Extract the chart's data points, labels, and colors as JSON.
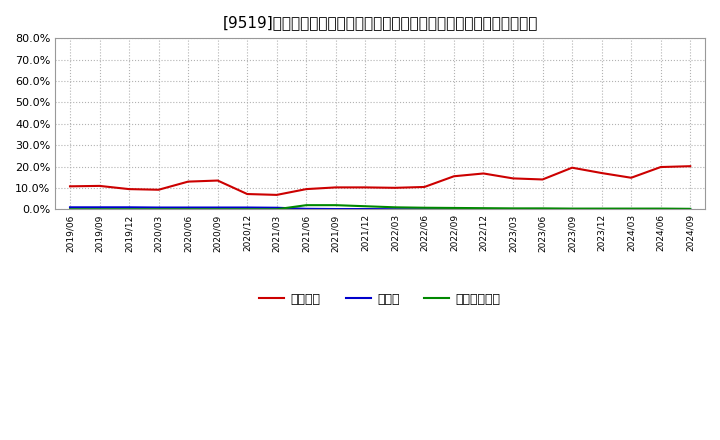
{
  "title": "[9519]　自己資本、のれん、繰延税金資産の総資産に対する比率の推移",
  "x_labels": [
    "2019/06",
    "2019/09",
    "2019/12",
    "2020/03",
    "2020/06",
    "2020/09",
    "2020/12",
    "2021/03",
    "2021/06",
    "2021/09",
    "2021/12",
    "2022/03",
    "2022/06",
    "2022/09",
    "2022/12",
    "2023/03",
    "2023/06",
    "2023/09",
    "2023/12",
    "2024/03",
    "2024/06",
    "2024/09"
  ],
  "jikoshihon": [
    10.8,
    11.0,
    9.5,
    9.2,
    13.0,
    13.5,
    7.2,
    6.8,
    9.5,
    10.3,
    10.3,
    10.1,
    10.5,
    15.5,
    16.8,
    14.5,
    14.0,
    19.5,
    17.0,
    14.8,
    19.8,
    20.2
  ],
  "noren": [
    1.0,
    1.0,
    1.0,
    0.9,
    0.9,
    0.9,
    0.9,
    0.8,
    0.3,
    0.2,
    0.2,
    0.1,
    0.1,
    0.1,
    0.1,
    0.1,
    0.1,
    0.1,
    0.1,
    0.1,
    0.1,
    0.1
  ],
  "kunobeizeikin": [
    0.1,
    0.1,
    0.1,
    0.1,
    0.1,
    0.1,
    0.1,
    0.1,
    2.0,
    2.0,
    1.5,
    1.0,
    0.8,
    0.7,
    0.6,
    0.5,
    0.5,
    0.4,
    0.4,
    0.4,
    0.4,
    0.3
  ],
  "jikoshihon_color": "#cc0000",
  "noren_color": "#0000cc",
  "kunobeizeikin_color": "#008800",
  "ylim": [
    0.0,
    80.0
  ],
  "yticks": [
    0.0,
    10.0,
    20.0,
    30.0,
    40.0,
    50.0,
    60.0,
    70.0,
    80.0
  ],
  "background_color": "#ffffff",
  "plot_bg_color": "#ffffff",
  "grid_color": "#aaaaaa",
  "title_fontsize": 11,
  "legend_labels": [
    "自己資本",
    "のれん",
    "繰延税金資産"
  ]
}
